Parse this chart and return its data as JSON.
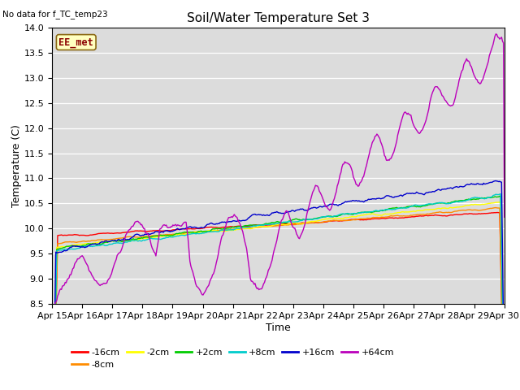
{
  "title": "Soil/Water Temperature Set 3",
  "xlabel": "Time",
  "ylabel": "Temperature (C)",
  "no_data_text": "No data for f_TC_temp23",
  "legend_label_text": "EE_met",
  "ylim": [
    8.5,
    14.0
  ],
  "x_tick_labels": [
    "Apr 15",
    "Apr 16",
    "Apr 17",
    "Apr 18",
    "Apr 19",
    "Apr 20",
    "Apr 21",
    "Apr 22",
    "Apr 23",
    "Apr 24",
    "Apr 25",
    "Apr 26",
    "Apr 27",
    "Apr 28",
    "Apr 29",
    "Apr 30"
  ],
  "series": [
    {
      "label": "-16cm",
      "color": "#FF0000"
    },
    {
      "label": "-8cm",
      "color": "#FF8C00"
    },
    {
      "label": "-2cm",
      "color": "#FFFF00"
    },
    {
      "label": "+2cm",
      "color": "#00CC00"
    },
    {
      "label": "+8cm",
      "color": "#00CCCC"
    },
    {
      "label": "+16cm",
      "color": "#0000CC"
    },
    {
      "label": "+64cm",
      "color": "#BB00BB"
    }
  ],
  "background_color": "#DCDCDC",
  "grid_color": "#FFFFFF",
  "title_fontsize": 11,
  "axis_fontsize": 9,
  "tick_fontsize": 8,
  "legend_fontsize": 8
}
